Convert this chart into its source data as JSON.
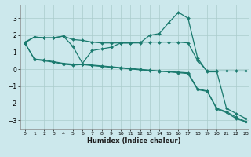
{
  "title": "",
  "xlabel": "Humidex (Indice chaleur)",
  "ylabel": "",
  "background_color": "#cce8ec",
  "grid_color": "#aacccc",
  "line_color": "#1a7a6e",
  "xlim": [
    -0.5,
    23.3
  ],
  "ylim": [
    -3.5,
    3.8
  ],
  "xticks": [
    0,
    1,
    2,
    3,
    4,
    5,
    6,
    7,
    8,
    9,
    10,
    11,
    12,
    13,
    14,
    15,
    16,
    17,
    18,
    19,
    20,
    21,
    22,
    23
  ],
  "yticks": [
    -3,
    -2,
    -1,
    0,
    1,
    2,
    3
  ],
  "series": [
    {
      "x": [
        0,
        1,
        2,
        3,
        4,
        5,
        6,
        7,
        8,
        9,
        10,
        11,
        12,
        13,
        14,
        15,
        16,
        17,
        18,
        19,
        20,
        21,
        22,
        23
      ],
      "y": [
        1.6,
        1.9,
        1.85,
        1.85,
        1.95,
        1.75,
        1.7,
        1.6,
        1.55,
        1.55,
        1.55,
        1.55,
        1.6,
        1.6,
        1.6,
        1.6,
        1.6,
        1.55,
        0.5,
        -0.1,
        -0.1,
        -0.1,
        -0.1,
        -0.1
      ]
    },
    {
      "x": [
        0,
        1,
        2,
        3,
        4,
        5,
        6,
        7,
        8,
        9,
        10,
        11,
        12,
        13,
        14,
        15,
        16,
        17,
        18,
        19,
        20,
        21,
        22,
        23
      ],
      "y": [
        1.55,
        1.9,
        1.85,
        1.85,
        1.95,
        1.35,
        0.35,
        1.1,
        1.2,
        1.3,
        1.55,
        1.55,
        1.55,
        2.0,
        2.1,
        2.75,
        3.35,
        3.0,
        0.65,
        -0.15,
        -0.15,
        -2.3,
        -2.6,
        -2.9
      ]
    },
    {
      "x": [
        0,
        1,
        2,
        3,
        4,
        5,
        6,
        7,
        8,
        9,
        10,
        11,
        12,
        13,
        14,
        15,
        16,
        17,
        18,
        19,
        20,
        21,
        22,
        23
      ],
      "y": [
        1.55,
        0.6,
        0.55,
        0.45,
        0.35,
        0.3,
        0.3,
        0.25,
        0.2,
        0.15,
        0.1,
        0.05,
        0.0,
        -0.05,
        -0.1,
        -0.15,
        -0.2,
        -0.25,
        -1.2,
        -1.3,
        -2.35,
        -2.55,
        -2.9,
        -3.1
      ]
    },
    {
      "x": [
        0,
        1,
        2,
        3,
        4,
        5,
        6,
        7,
        8,
        9,
        10,
        11,
        12,
        13,
        14,
        15,
        16,
        17,
        18,
        19,
        20,
        21,
        22,
        23
      ],
      "y": [
        1.55,
        0.58,
        0.5,
        0.42,
        0.3,
        0.25,
        0.28,
        0.22,
        0.17,
        0.12,
        0.07,
        0.02,
        -0.03,
        -0.08,
        -0.11,
        -0.14,
        -0.17,
        -0.21,
        -1.15,
        -1.28,
        -2.3,
        -2.5,
        -2.82,
        -3.08
      ]
    }
  ]
}
